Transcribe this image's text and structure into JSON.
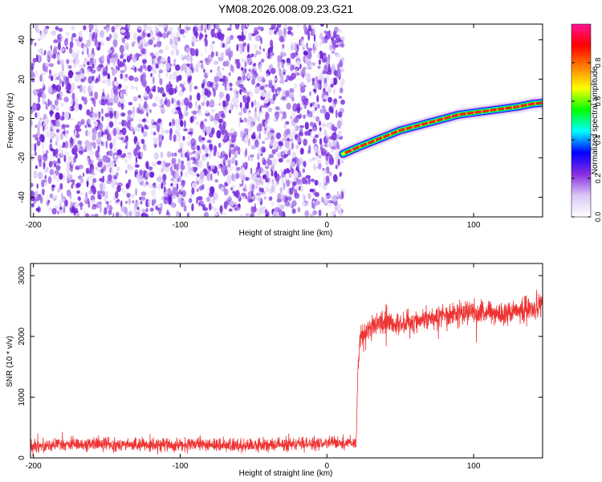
{
  "title": "YM08.2026.008.09.23.G21",
  "colors": {
    "background": "#ffffff",
    "snr_line": "#ee3333",
    "noise_purple": "#7a33e6",
    "axis": "#000000"
  },
  "colorbar": {
    "label": "Normalized spectral amplitude",
    "ticks": [
      "0.0",
      "0.2",
      "0.4",
      "0.6",
      "0.8"
    ],
    "tick_values": [
      0.0,
      0.2,
      0.4,
      0.6,
      0.8
    ],
    "range": [
      0,
      1
    ],
    "colormap": [
      "#ffffff",
      "#d9c7f5",
      "#8a2be2",
      "#0000ff",
      "#00ffff",
      "#00ff00",
      "#ffff00",
      "#ff8000",
      "#ff0000",
      "#ff1493"
    ]
  },
  "chart_data": [
    {
      "type": "heatmap",
      "name": "spectrogram",
      "xlabel": "Height of straight line (km)",
      "ylabel": "Frequency (Hz)",
      "xlim": [
        -202,
        147
      ],
      "ylim": [
        -50,
        48
      ],
      "x_ticks": [
        -200,
        -100,
        0,
        100
      ],
      "x_tick_labels": [
        "-200",
        "-100",
        "0",
        "100"
      ],
      "y_ticks": [
        -40,
        -20,
        0,
        20,
        40
      ],
      "y_tick_labels": [
        "-40",
        "-20",
        "0",
        "20",
        "40"
      ],
      "noise_region_x": [
        -202,
        11
      ],
      "signal_track": {
        "x": [
          11,
          20,
          30,
          40,
          50,
          60,
          70,
          80,
          90,
          100,
          110,
          120,
          130,
          140,
          147
        ],
        "frequency": [
          -18,
          -15,
          -12,
          -9,
          -6,
          -4,
          -2,
          0,
          2,
          3,
          4,
          5,
          6,
          7.5,
          8
        ]
      }
    },
    {
      "type": "line",
      "name": "snr",
      "xlabel": "Height of straight line (km)",
      "ylabel": "SNR (10 * v/v)",
      "xlim": [
        -202,
        147
      ],
      "ylim": [
        0,
        3200
      ],
      "x_ticks": [
        -200,
        -100,
        0,
        100
      ],
      "x_tick_labels": [
        "-200",
        "-100",
        "0",
        "100"
      ],
      "y_ticks": [
        0,
        1000,
        2000,
        3000
      ],
      "y_tick_labels": [
        "0",
        "1000",
        "2000",
        "3000"
      ],
      "series": [
        {
          "x": [
            -202,
            -180,
            -160,
            -140,
            -120,
            -100,
            -80,
            -60,
            -40,
            -20,
            0,
            5,
            10,
            15,
            20,
            21,
            22,
            23,
            25,
            30,
            40,
            50,
            60,
            70,
            80,
            90,
            100,
            110,
            120,
            130,
            140,
            147
          ],
          "values": [
            200,
            220,
            230,
            220,
            210,
            210,
            220,
            200,
            210,
            230,
            230,
            250,
            240,
            260,
            250,
            1400,
            1800,
            2050,
            2000,
            2150,
            2250,
            2200,
            2250,
            2300,
            2350,
            2400,
            2400,
            2400,
            2350,
            2450,
            2450,
            2500
          ],
          "noise_amplitude_low": 140,
          "noise_amplitude_high": 260
        }
      ]
    }
  ]
}
